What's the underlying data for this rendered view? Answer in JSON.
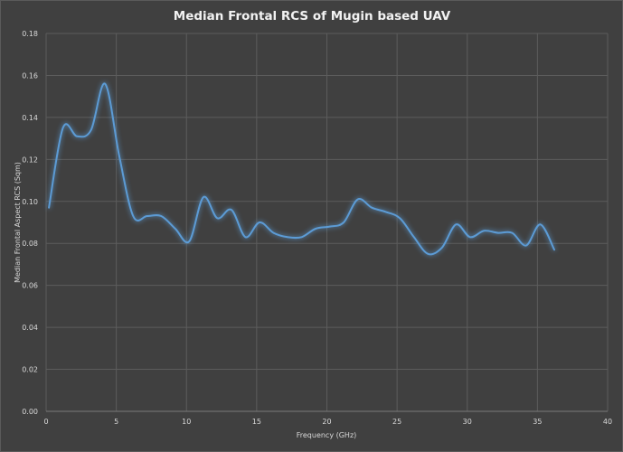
{
  "chart_data": {
    "type": "line",
    "title": "Median Frontal RCS of Mugin based UAV",
    "xlabel": "Frequency  (GHz)",
    "ylabel": "Median Frontal Aspect RCS (Sqm)",
    "xlim": [
      0,
      40
    ],
    "ylim": [
      0,
      0.18
    ],
    "xticks": [
      0,
      5,
      10,
      15,
      20,
      25,
      30,
      35,
      40
    ],
    "yticks": [
      0,
      0.02,
      0.04,
      0.06,
      0.08,
      0.1,
      0.12,
      0.14,
      0.16,
      0.18
    ],
    "ytick_labels": [
      "0.00",
      "0.02",
      "0.04",
      "0.06",
      "0.08",
      "0.10",
      "0.12",
      "0.14",
      "0.16",
      "0.18"
    ],
    "grid": true,
    "series": [
      {
        "color": "#5b9bd5",
        "x": [
          0.2,
          1.2,
          2.2,
          3.2,
          4.2,
          5.2,
          6.2,
          7.2,
          8.2,
          9.2,
          10.2,
          11.2,
          12.2,
          13.2,
          14.2,
          15.2,
          16.2,
          17.2,
          18.2,
          19.2,
          20.2,
          21.2,
          22.2,
          23.2,
          24.2,
          25.2,
          26.2,
          27.2,
          28.2,
          29.2,
          30.2,
          31.2,
          32.2,
          33.2,
          34.2,
          35.2,
          36.2
        ],
        "y": [
          0.097,
          0.135,
          0.131,
          0.134,
          0.156,
          0.122,
          0.093,
          0.093,
          0.093,
          0.087,
          0.081,
          0.102,
          0.092,
          0.096,
          0.083,
          0.09,
          0.085,
          0.083,
          0.083,
          0.087,
          0.088,
          0.09,
          0.101,
          0.097,
          0.095,
          0.092,
          0.083,
          0.075,
          0.078,
          0.089,
          0.083,
          0.086,
          0.085,
          0.085,
          0.079,
          0.089,
          0.077
        ]
      }
    ]
  }
}
